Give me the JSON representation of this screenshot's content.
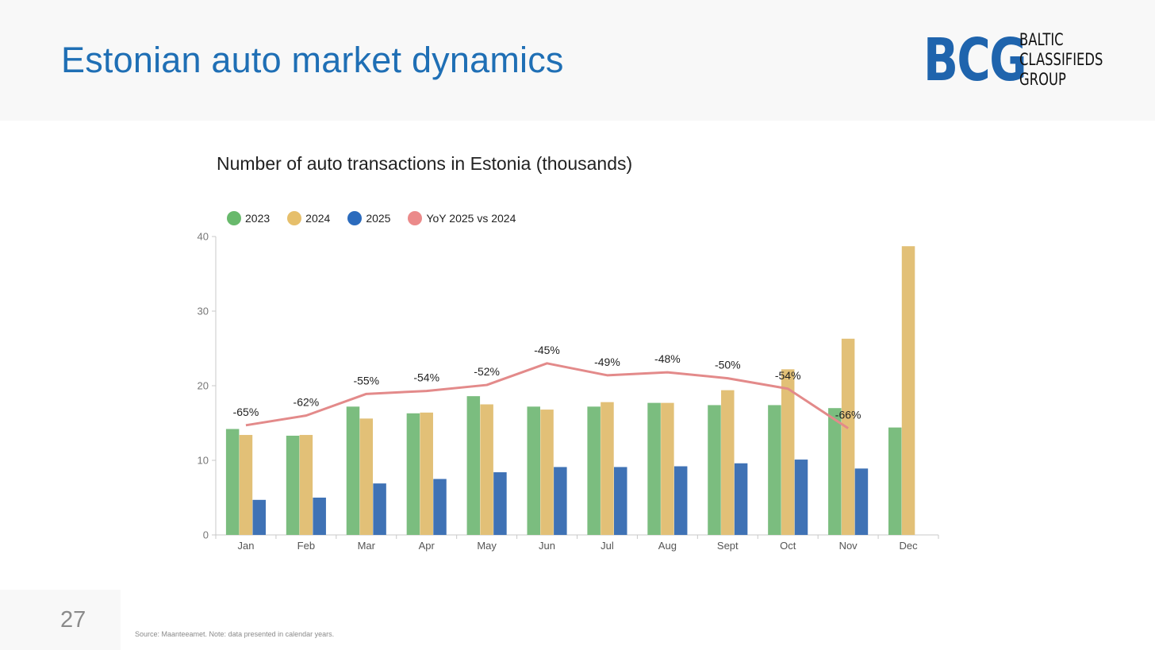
{
  "header": {
    "title": "Estonian auto market dynamics"
  },
  "logo": {
    "mark": "BCG",
    "lines": [
      "BALTIC",
      "CLASSIFIEDS",
      "GROUP"
    ]
  },
  "footer": {
    "page_number": "27",
    "source": "Source: Maanteeamet. Note: data presented in calendar years."
  },
  "colors": {
    "accent": "#1f6fb5",
    "series_2023": "#7bbd7f",
    "series_2024": "#e2c077",
    "series_2025": "#3f72b5",
    "yoy": "#e38a8a"
  },
  "chart_data": {
    "type": "bar",
    "title": "Number of auto transactions in Estonia (thousands)",
    "xlabel": "",
    "ylabel": "",
    "ylim": [
      0,
      40
    ],
    "yticks": [
      0,
      10,
      20,
      30,
      40
    ],
    "categories": [
      "Jan",
      "Feb",
      "Mar",
      "Apr",
      "May",
      "Jun",
      "Jul",
      "Aug",
      "Sept",
      "Oct",
      "Nov",
      "Dec"
    ],
    "series": [
      {
        "name": "2023",
        "color": "#7bbd7f",
        "values": [
          14.2,
          13.3,
          17.2,
          16.3,
          18.6,
          17.2,
          17.2,
          17.7,
          17.4,
          17.4,
          17.0,
          14.4
        ]
      },
      {
        "name": "2024",
        "color": "#e2c077",
        "values": [
          13.4,
          13.4,
          15.6,
          16.4,
          17.5,
          16.8,
          17.8,
          17.7,
          19.4,
          22.2,
          26.3,
          38.7
        ]
      },
      {
        "name": "2025",
        "color": "#3f72b5",
        "values": [
          4.7,
          5.0,
          6.9,
          7.5,
          8.4,
          9.1,
          9.1,
          9.2,
          9.6,
          10.1,
          8.9,
          null
        ]
      }
    ],
    "line": {
      "name": "YoY 2025 vs 2024",
      "color": "#e38a8a",
      "values": [
        14.7,
        16.0,
        18.9,
        19.3,
        20.1,
        23.0,
        21.4,
        21.8,
        21.0,
        19.6,
        14.3,
        null
      ],
      "labels": [
        "-65%",
        "-62%",
        "-55%",
        "-54%",
        "-52%",
        "-45%",
        "-49%",
        "-48%",
        "-50%",
        "-54%",
        "-66%",
        null
      ]
    },
    "legend": [
      "2023",
      "2024",
      "2025",
      "YoY 2025 vs 2024"
    ],
    "legend_position": "top-left"
  }
}
